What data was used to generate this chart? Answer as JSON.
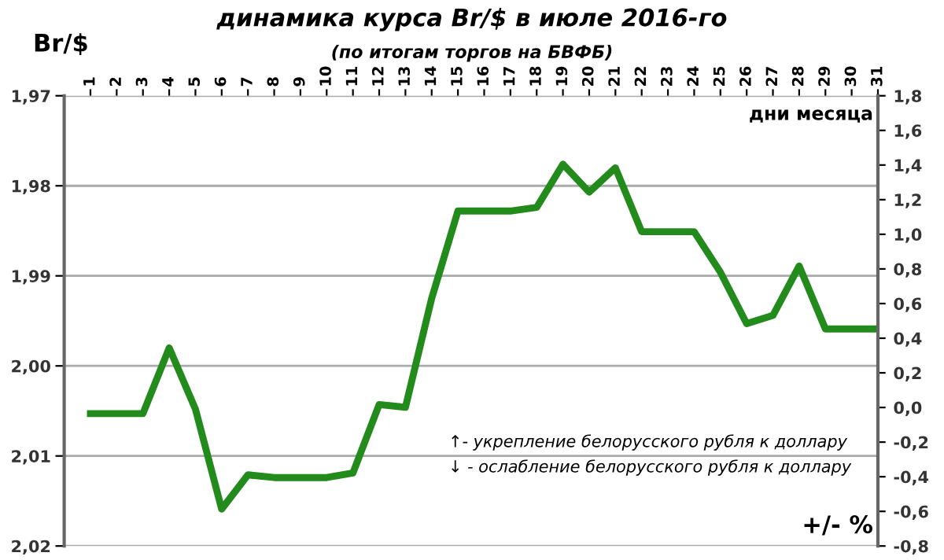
{
  "chart_data": {
    "type": "line",
    "title": "динамика курса Br/$ в июле 2016-го",
    "subtitle": "(по итогам торгов на БВФБ)",
    "ylabel": "Br/$",
    "x": [
      1,
      2,
      3,
      4,
      5,
      6,
      7,
      8,
      9,
      10,
      11,
      12,
      13,
      14,
      15,
      16,
      17,
      18,
      19,
      20,
      21,
      22,
      23,
      24,
      25,
      26,
      27,
      28,
      29,
      30,
      31
    ],
    "series": [
      {
        "color": "#228b1c",
        "values": [
          2.0053,
          2.0053,
          2.0053,
          1.998,
          2.0048,
          2.0159,
          2.0121,
          2.0124,
          2.0124,
          2.0124,
          2.0119,
          2.0043,
          2.0046,
          1.9925,
          1.9828,
          1.9828,
          1.9828,
          1.9824,
          1.9776,
          1.9807,
          1.978,
          1.9851,
          1.9851,
          1.9851,
          1.9896,
          1.9953,
          1.9944,
          1.9889,
          1.9959,
          1.9959,
          1.9959
        ]
      }
    ],
    "xlim": [
      0,
      31
    ],
    "xticks": [
      1,
      2,
      3,
      4,
      5,
      6,
      7,
      8,
      9,
      10,
      11,
      12,
      13,
      14,
      15,
      16,
      17,
      18,
      19,
      20,
      21,
      22,
      23,
      24,
      25,
      26,
      27,
      28,
      29,
      30,
      31
    ],
    "ylim": [
      2.02,
      1.97
    ],
    "yticks": [
      {
        "value": 1.97,
        "label": "1,97"
      },
      {
        "value": 1.98,
        "label": "1,98"
      },
      {
        "value": 1.99,
        "label": "1,99"
      },
      {
        "value": 2.0,
        "label": "2,00"
      },
      {
        "value": 2.01,
        "label": "2,01"
      },
      {
        "value": 2.02,
        "label": "2,02"
      }
    ],
    "y2lim": [
      -0.8,
      1.8
    ],
    "y2ticks": [
      {
        "value": -0.8,
        "label": "-0,8"
      },
      {
        "value": -0.6,
        "label": "-0,6"
      },
      {
        "value": -0.4,
        "label": "-0,4"
      },
      {
        "value": -0.2,
        "label": "-0,2"
      },
      {
        "value": 0.0,
        "label": "0,0"
      },
      {
        "value": 0.2,
        "label": "0,2"
      },
      {
        "value": 0.4,
        "label": "0,4"
      },
      {
        "value": 0.6,
        "label": "0,6"
      },
      {
        "value": 0.8,
        "label": "0,8"
      },
      {
        "value": 1.0,
        "label": "1,0"
      },
      {
        "value": 1.2,
        "label": "1,2"
      },
      {
        "value": 1.4,
        "label": "1,4"
      },
      {
        "value": 1.6,
        "label": "1,6"
      },
      {
        "value": 1.8,
        "label": "1,8"
      }
    ],
    "grid": "y",
    "marker": "none",
    "line_style": "solid",
    "legend": false,
    "annotations": [
      "дни месяца",
      "+/- %",
      "↑- укрепление белорусского рубля к доллару",
      "↓ - ослабление белорусского рубля к доллару"
    ]
  }
}
